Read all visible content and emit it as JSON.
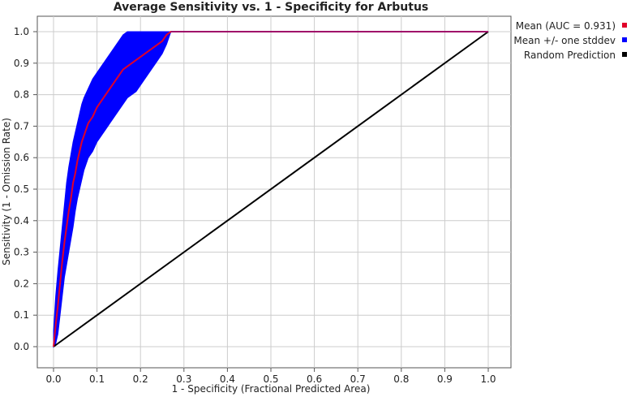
{
  "chart_data": {
    "type": "line",
    "title": "Average Sensitivity vs. 1 - Specificity for Arbutus",
    "xlabel": "1 - Specificity (Fractional Predicted Area)",
    "ylabel": "Sensitivity (1 - Omission Rate)",
    "xlim": [
      0,
      1
    ],
    "ylim": [
      0,
      1
    ],
    "xticks": [
      "0.0",
      "0.1",
      "0.2",
      "0.3",
      "0.4",
      "0.5",
      "0.6",
      "0.7",
      "0.8",
      "0.9",
      "1.0"
    ],
    "yticks": [
      "0.0",
      "0.1",
      "0.2",
      "0.3",
      "0.4",
      "0.5",
      "0.6",
      "0.7",
      "0.8",
      "0.9",
      "1.0"
    ],
    "grid": true,
    "legend_position": "right",
    "series": [
      {
        "name": "Mean (AUC = 0.931)",
        "color": "#e0002a",
        "x": [
          0,
          0.005,
          0.01,
          0.015,
          0.02,
          0.025,
          0.03,
          0.035,
          0.04,
          0.045,
          0.05,
          0.055,
          0.06,
          0.065,
          0.07,
          0.08,
          0.09,
          0.1,
          0.11,
          0.12,
          0.13,
          0.14,
          0.15,
          0.16,
          0.17,
          0.18,
          0.19,
          0.2,
          0.21,
          0.22,
          0.23,
          0.24,
          0.25,
          0.26,
          0.27,
          0.3,
          0.4,
          0.5,
          0.6,
          0.7,
          0.8,
          0.9,
          1.0
        ],
        "y": [
          0,
          0.07,
          0.13,
          0.2,
          0.27,
          0.33,
          0.38,
          0.43,
          0.47,
          0.52,
          0.55,
          0.59,
          0.62,
          0.65,
          0.67,
          0.71,
          0.73,
          0.76,
          0.78,
          0.8,
          0.82,
          0.84,
          0.86,
          0.88,
          0.89,
          0.9,
          0.91,
          0.92,
          0.93,
          0.94,
          0.95,
          0.96,
          0.97,
          0.99,
          1.0,
          1.0,
          1.0,
          1.0,
          1.0,
          1.0,
          1.0,
          1.0,
          1.0
        ]
      },
      {
        "name": "Mean +/- one stddev",
        "color": "#0000ff",
        "x": [
          0,
          0.005,
          0.01,
          0.015,
          0.02,
          0.025,
          0.03,
          0.035,
          0.04,
          0.045,
          0.05,
          0.055,
          0.06,
          0.065,
          0.07,
          0.08,
          0.09,
          0.1,
          0.11,
          0.12,
          0.13,
          0.14,
          0.15,
          0.16,
          0.17,
          0.18,
          0.19,
          0.2,
          0.21,
          0.22,
          0.23,
          0.24,
          0.25,
          0.26,
          0.27
        ],
        "upper": [
          0.05,
          0.16,
          0.24,
          0.31,
          0.38,
          0.45,
          0.52,
          0.57,
          0.61,
          0.65,
          0.68,
          0.71,
          0.74,
          0.77,
          0.79,
          0.82,
          0.85,
          0.87,
          0.89,
          0.91,
          0.93,
          0.95,
          0.97,
          0.99,
          1.0,
          1.0,
          1.0,
          1.0,
          1.0,
          1.0,
          1.0,
          1.0,
          1.0,
          1.0,
          1.0
        ],
        "lower": [
          0,
          0.01,
          0.04,
          0.1,
          0.16,
          0.22,
          0.26,
          0.3,
          0.34,
          0.38,
          0.43,
          0.47,
          0.5,
          0.53,
          0.56,
          0.6,
          0.62,
          0.65,
          0.67,
          0.69,
          0.71,
          0.73,
          0.75,
          0.77,
          0.79,
          0.8,
          0.81,
          0.83,
          0.85,
          0.87,
          0.89,
          0.91,
          0.93,
          0.96,
          1.0
        ]
      },
      {
        "name": "Random Prediction",
        "color": "#000000",
        "x": [
          0,
          1
        ],
        "y": [
          0,
          1
        ]
      }
    ]
  }
}
